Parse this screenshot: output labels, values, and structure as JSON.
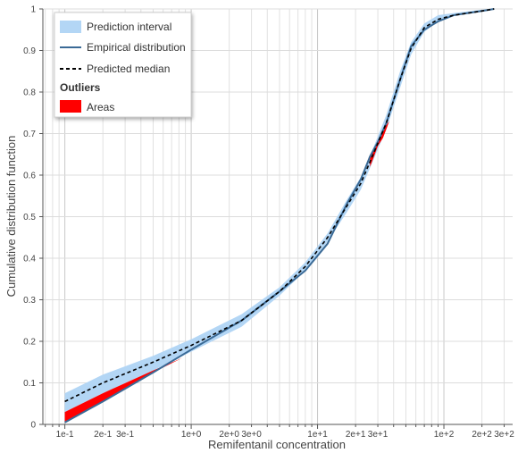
{
  "chart_data": {
    "type": "line",
    "title": "",
    "xlabel": "Remifentanil concentration",
    "ylabel": "Cumulative distribution function",
    "x_scale": "log",
    "xlim": [
      0.067,
      350
    ],
    "ylim": [
      0,
      1
    ],
    "grid": true,
    "x_ticks": [
      {
        "value": 0.1,
        "label": "1e-1"
      },
      {
        "value": 0.2,
        "label": "2e-1"
      },
      {
        "value": 0.3,
        "label": "3e-1"
      },
      {
        "value": 1,
        "label": "1e+0"
      },
      {
        "value": 2,
        "label": "2e+0"
      },
      {
        "value": 3,
        "label": "3e+0"
      },
      {
        "value": 10,
        "label": "1e+1"
      },
      {
        "value": 20,
        "label": "2e+1"
      },
      {
        "value": 30,
        "label": "3e+1"
      },
      {
        "value": 100,
        "label": "1e+2"
      },
      {
        "value": 200,
        "label": "2e+2"
      },
      {
        "value": 300,
        "label": "3e+2"
      }
    ],
    "y_ticks": [
      {
        "value": 0,
        "label": "0"
      },
      {
        "value": 0.1,
        "label": "0.1"
      },
      {
        "value": 0.2,
        "label": "0.2"
      },
      {
        "value": 0.3,
        "label": "0.3"
      },
      {
        "value": 0.4,
        "label": "0.4"
      },
      {
        "value": 0.5,
        "label": "0.5"
      },
      {
        "value": 0.6,
        "label": "0.6"
      },
      {
        "value": 0.7,
        "label": "0.7"
      },
      {
        "value": 0.8,
        "label": "0.8"
      },
      {
        "value": 0.9,
        "label": "0.9"
      },
      {
        "value": 1,
        "label": "1"
      }
    ],
    "prediction_interval": {
      "name": "Prediction interval",
      "color": "#b3d6f5",
      "x": [
        0.1,
        0.2,
        0.5,
        1,
        2.5,
        5,
        8,
        12,
        17,
        22,
        28,
        35,
        45,
        55,
        70,
        90,
        120,
        200,
        250
      ],
      "lower": [
        0.03,
        0.075,
        0.13,
        0.175,
        0.235,
        0.31,
        0.37,
        0.44,
        0.51,
        0.565,
        0.64,
        0.71,
        0.81,
        0.89,
        0.945,
        0.97,
        0.985,
        0.995,
        1.0
      ],
      "upper": [
        0.075,
        0.12,
        0.165,
        0.205,
        0.265,
        0.33,
        0.39,
        0.46,
        0.54,
        0.595,
        0.67,
        0.745,
        0.85,
        0.92,
        0.965,
        0.985,
        0.99,
        0.998,
        1.0
      ]
    },
    "empirical": {
      "name": "Empirical distribution",
      "color": "#3a6a96",
      "x": [
        0.1,
        0.2,
        0.5,
        1,
        2.5,
        5,
        8,
        12,
        17,
        22,
        26,
        30,
        35,
        45,
        55,
        70,
        90,
        120,
        200,
        250
      ],
      "y": [
        0.005,
        0.055,
        0.125,
        0.18,
        0.25,
        0.32,
        0.37,
        0.435,
        0.53,
        0.59,
        0.645,
        0.68,
        0.725,
        0.83,
        0.91,
        0.95,
        0.97,
        0.985,
        0.995,
        1.0
      ]
    },
    "median": {
      "name": "Predicted median",
      "color": "#000000",
      "x": [
        0.1,
        0.2,
        0.5,
        1,
        2.5,
        5,
        8,
        12,
        17,
        22,
        28,
        35,
        45,
        55,
        70,
        90,
        120,
        200,
        250
      ],
      "y": [
        0.055,
        0.1,
        0.15,
        0.19,
        0.25,
        0.32,
        0.38,
        0.45,
        0.525,
        0.58,
        0.655,
        0.725,
        0.83,
        0.905,
        0.955,
        0.975,
        0.985,
        0.995,
        1.0
      ]
    },
    "outlier_areas": {
      "name": "Areas",
      "color": "#ff0000",
      "regions": [
        {
          "x": [
            0.1,
            0.2,
            0.5,
            0.85
          ],
          "top": [
            0.03,
            0.075,
            0.13,
            0.16
          ],
          "bottom": [
            0.005,
            0.055,
            0.125,
            0.16
          ]
        },
        {
          "x": [
            26,
            28,
            30,
            33,
            37
          ],
          "top": [
            0.645,
            0.665,
            0.685,
            0.71,
            0.73
          ],
          "bottom": [
            0.62,
            0.645,
            0.67,
            0.69,
            0.73
          ]
        }
      ]
    },
    "legend": {
      "position": "top-left",
      "items": [
        {
          "label": "Prediction interval",
          "kind": "band",
          "color": "#b3d6f5"
        },
        {
          "label": "Empirical distribution",
          "kind": "line",
          "color": "#3a6a96"
        },
        {
          "label": "Predicted median",
          "kind": "dashed",
          "color": "#000000"
        }
      ],
      "section_title": "Outliers",
      "section_items": [
        {
          "label": "Areas",
          "kind": "band",
          "color": "#ff0000"
        }
      ]
    }
  }
}
